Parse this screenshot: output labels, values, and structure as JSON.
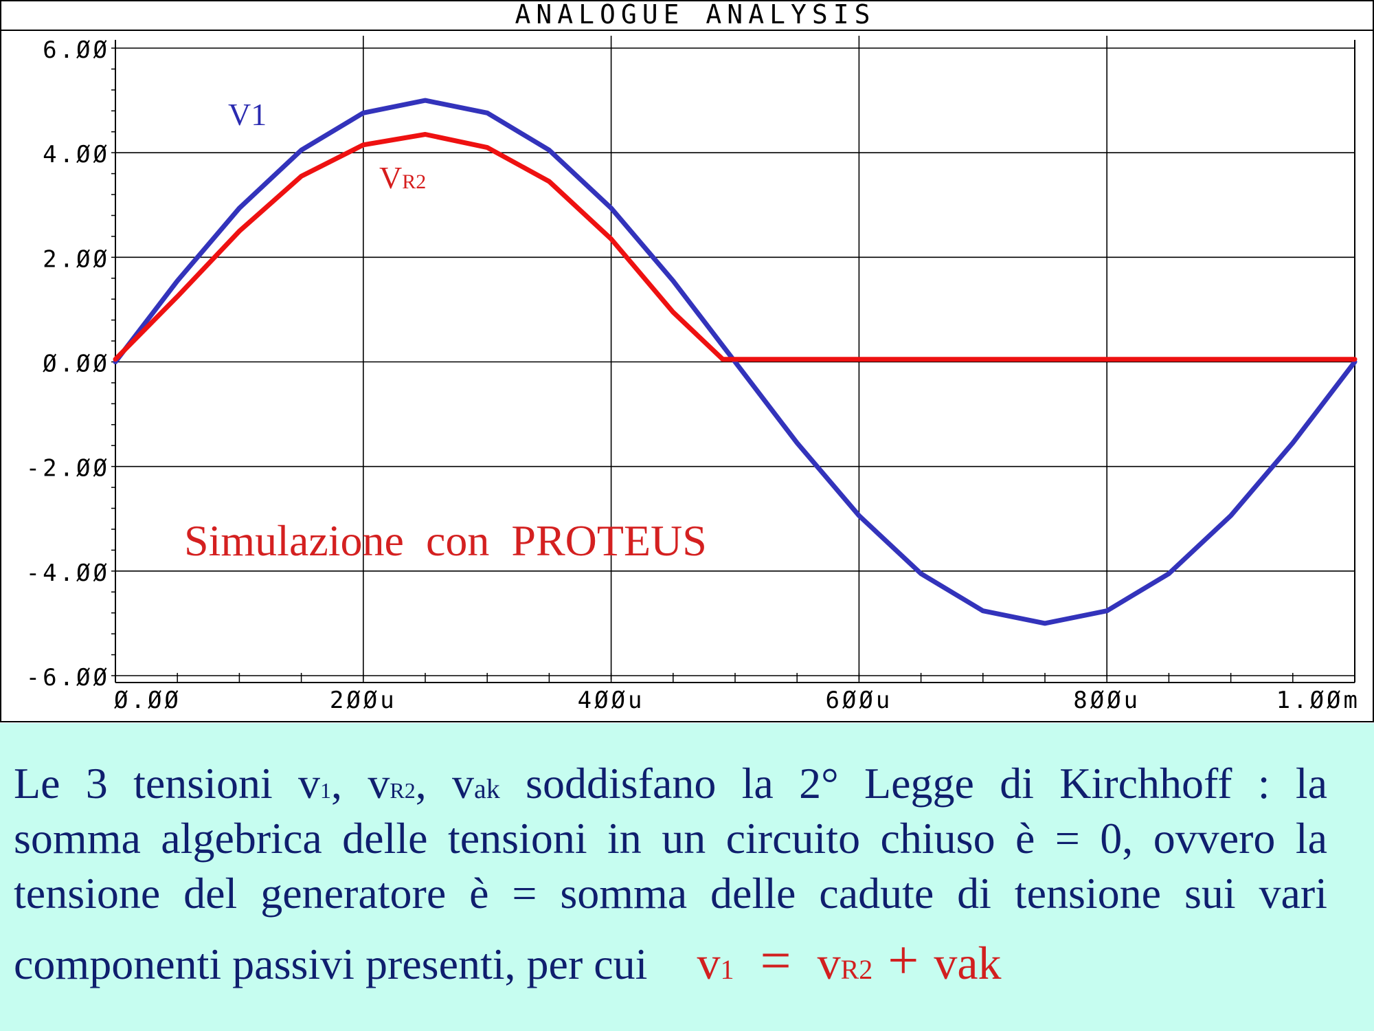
{
  "chart_data": {
    "type": "line",
    "title": "ANALOGUE ANALYSIS",
    "xlabel": "",
    "ylabel": "",
    "xlim": [
      0,
      0.001
    ],
    "ylim": [
      -6,
      6
    ],
    "grid": true,
    "x_tick_labels": [
      "Ø.ØØ",
      "2ØØu",
      "4ØØu",
      "6ØØu",
      "8ØØu",
      "1.ØØm"
    ],
    "x_tick_values": [
      0,
      0.0002,
      0.0004,
      0.0006,
      0.0008,
      0.001
    ],
    "y_tick_labels": [
      "6.ØØ",
      "4.ØØ",
      "2.ØØ",
      "Ø.ØØ",
      "-2.ØØ",
      "-4.ØØ",
      "-6.ØØ"
    ],
    "y_tick_values": [
      6,
      4,
      2,
      0,
      -2,
      -4,
      -6
    ],
    "series": [
      {
        "name": "V1",
        "color": "#3333bb",
        "x": [
          0,
          5e-05,
          0.0001,
          0.00015,
          0.0002,
          0.00025,
          0.0003,
          0.00035,
          0.0004,
          0.00045,
          0.0005,
          0.00055,
          0.0006,
          0.00065,
          0.0007,
          0.00075,
          0.0008,
          0.00085,
          0.0009,
          0.00095,
          0.001
        ],
        "y": [
          0,
          1.55,
          2.94,
          4.05,
          4.76,
          5.0,
          4.76,
          4.05,
          2.94,
          1.55,
          0,
          -1.55,
          -2.94,
          -4.05,
          -4.76,
          -5.0,
          -4.76,
          -4.05,
          -2.94,
          -1.55,
          0
        ]
      },
      {
        "name": "VR2",
        "color": "#ee1111",
        "x": [
          0,
          5e-05,
          0.0001,
          0.00015,
          0.0002,
          0.00025,
          0.0003,
          0.00035,
          0.0004,
          0.00045,
          0.00049,
          0.0005,
          0.001
        ],
        "y": [
          0.05,
          1.25,
          2.5,
          3.55,
          4.15,
          4.35,
          4.1,
          3.45,
          2.35,
          0.95,
          0.05,
          0.05,
          0.05
        ]
      }
    ],
    "annotations": [
      "Simulazione  con  PROTEUS"
    ]
  },
  "colors": {
    "panel_background": "#c6fdf0",
    "text_dark_blue": "#0f1f6e",
    "text_red": "#d21f1f",
    "series_blue": "#3333bb",
    "series_red": "#ee1111"
  },
  "labels": {
    "v1": "V1",
    "vr2_main": "V",
    "vr2_sub": "R2",
    "annotation": "Simulazione  con  PROTEUS"
  },
  "text": {
    "line1_a": "Le 3 tensioni v",
    "line1_sub1": "1",
    "line1_b": ", v",
    "line1_sub2": "R2",
    "line1_c": ", v",
    "line1_sub3": "ak",
    "line1_d": " soddisfano la 2° Legge di Kirchhoff : la",
    "line2": "somma algebrica delle tensioni in un circuito chiuso è = 0, ovvero la",
    "line3": "tensione del generatore è = somma delle cadute di tensione sui vari",
    "line4": "componenti passivi presenti, per cui",
    "formula_v1_main": "v",
    "formula_v1_sub": "1",
    "formula_eq": "=",
    "formula_vr2_main": "v",
    "formula_vr2_sub": "R2",
    "formula_plus": "+",
    "formula_vak": "vak"
  }
}
